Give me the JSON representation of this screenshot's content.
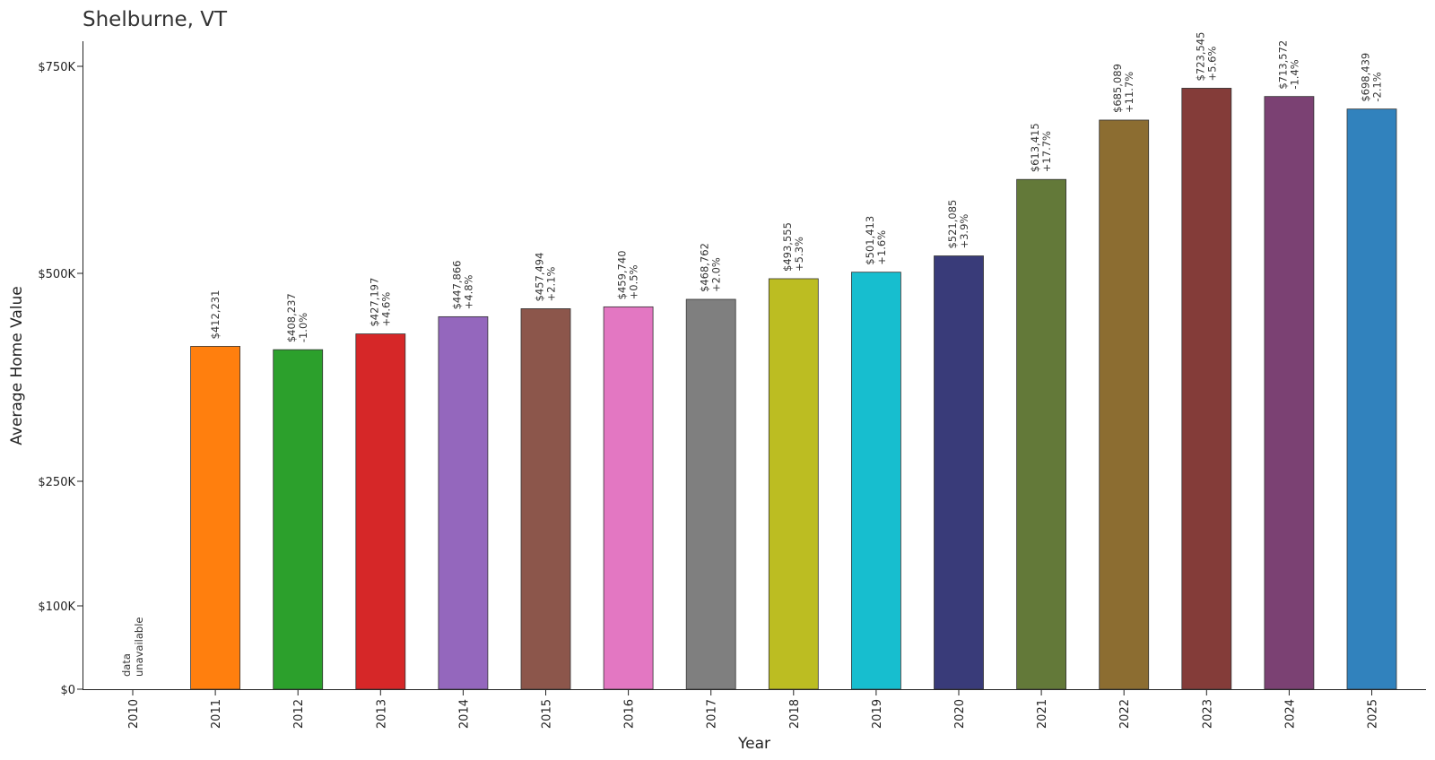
{
  "chart_data": {
    "type": "bar",
    "title": "Shelburne, VT",
    "xlabel": "Year",
    "ylabel": "Average Home Value",
    "ylim": [
      0,
      780000
    ],
    "grid": false,
    "y_scale": "piecewise",
    "y_ticks": [
      {
        "value": 0,
        "label": "$0"
      },
      {
        "value": 100000,
        "label": "$100K"
      },
      {
        "value": 250000,
        "label": "$250K"
      },
      {
        "value": 500000,
        "label": "$500K"
      },
      {
        "value": 750000,
        "label": "$750K"
      }
    ],
    "bars": [
      {
        "year": "2010",
        "value": null,
        "label": "data\nunavailable",
        "color": null
      },
      {
        "year": "2011",
        "value": 412231,
        "label": "$412,231",
        "change": "",
        "color": "#ff7f0e"
      },
      {
        "year": "2012",
        "value": 408237,
        "label": "$408,237",
        "change": "-1.0%",
        "color": "#2ca02c"
      },
      {
        "year": "2013",
        "value": 427197,
        "label": "$427,197",
        "change": "+4.6%",
        "color": "#d62728"
      },
      {
        "year": "2014",
        "value": 447866,
        "label": "$447,866",
        "change": "+4.8%",
        "color": "#9467bd"
      },
      {
        "year": "2015",
        "value": 457494,
        "label": "$457,494",
        "change": "+2.1%",
        "color": "#8c564b"
      },
      {
        "year": "2016",
        "value": 459740,
        "label": "$459,740",
        "change": "+0.5%",
        "color": "#e377c2"
      },
      {
        "year": "2017",
        "value": 468762,
        "label": "$468,762",
        "change": "+2.0%",
        "color": "#7f7f7f"
      },
      {
        "year": "2018",
        "value": 493555,
        "label": "$493,555",
        "change": "+5.3%",
        "color": "#bcbd22"
      },
      {
        "year": "2019",
        "value": 501413,
        "label": "$501,413",
        "change": "+1.6%",
        "color": "#17becf"
      },
      {
        "year": "2020",
        "value": 521085,
        "label": "$521,085",
        "change": "+3.9%",
        "color": "#393b79"
      },
      {
        "year": "2021",
        "value": 613415,
        "label": "$613,415",
        "change": "+17.7%",
        "color": "#637939"
      },
      {
        "year": "2022",
        "value": 685089,
        "label": "$685,089",
        "change": "+11.7%",
        "color": "#8c6d31"
      },
      {
        "year": "2023",
        "value": 723545,
        "label": "$723,545",
        "change": "+5.6%",
        "color": "#843c39"
      },
      {
        "year": "2024",
        "value": 713572,
        "label": "$713,572",
        "change": "-1.4%",
        "color": "#7b4173"
      },
      {
        "year": "2025",
        "value": 698439,
        "label": "$698,439",
        "change": "-2.1%",
        "color": "#3182bd"
      }
    ]
  }
}
